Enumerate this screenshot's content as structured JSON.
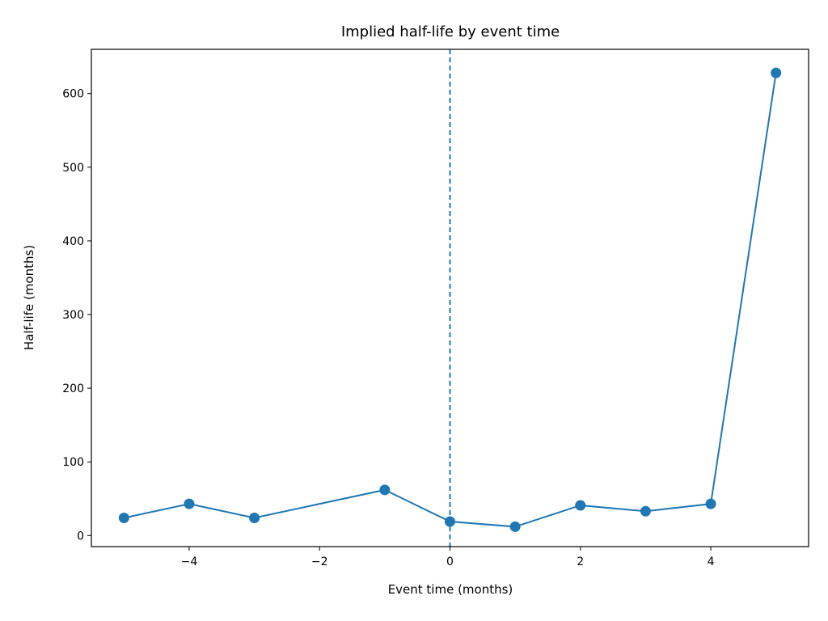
{
  "chart_data": {
    "type": "line",
    "title": "Implied half-life by event time",
    "xlabel": "Event time (months)",
    "ylabel": "Half-life (months)",
    "xlim": [
      -5.5,
      5.5
    ],
    "ylim": [
      -15,
      660
    ],
    "xticks": [
      -4,
      -2,
      0,
      2,
      4
    ],
    "xtick_labels": [
      "−4",
      "−2",
      "0",
      "2",
      "4"
    ],
    "yticks": [
      0,
      100,
      200,
      300,
      400,
      500,
      600
    ],
    "ytick_labels": [
      "0",
      "100",
      "200",
      "300",
      "400",
      "500",
      "600"
    ],
    "grid": false,
    "series": [
      {
        "x": [
          -5,
          -4,
          -3,
          -1,
          0,
          1,
          2,
          3,
          4,
          5
        ],
        "y": [
          24,
          43,
          24,
          62,
          19,
          12,
          41,
          33,
          43,
          628
        ],
        "color": "#1f77b4",
        "marker": "circle"
      }
    ],
    "reference_lines": [
      {
        "axis": "x",
        "value": 0,
        "style": "dashed",
        "color": "#1f77b4"
      }
    ]
  }
}
